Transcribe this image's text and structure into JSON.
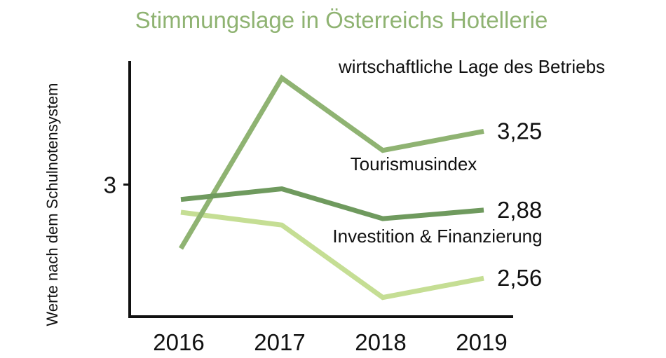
{
  "chart_data": {
    "type": "line",
    "title": "Stimmungslage in Österreichs Hotellerie",
    "ylabel": "Werte nach dem Schulnotensystem",
    "xlabel": "",
    "categories": [
      "2016",
      "2017",
      "2018",
      "2019"
    ],
    "yticks": [
      {
        "value": 3,
        "label": "3"
      }
    ],
    "ylim": [
      2.38,
      3.58
    ],
    "grid": false,
    "legend": "inline labels",
    "series": [
      {
        "name": "wirtschaftliche Lage des Betriebs",
        "values": [
          2.7,
          3.5,
          3.16,
          3.25
        ],
        "end_label": "3,25",
        "color": "#8fb372"
      },
      {
        "name": "Tourismusindex",
        "values": [
          2.93,
          2.98,
          2.84,
          2.88
        ],
        "end_label": "2,88",
        "color": "#6f9a5e"
      },
      {
        "name": "Investition & Finanzierung",
        "values": [
          2.87,
          2.81,
          2.47,
          2.56
        ],
        "end_label": "2,56",
        "color": "#c5de94"
      }
    ]
  }
}
